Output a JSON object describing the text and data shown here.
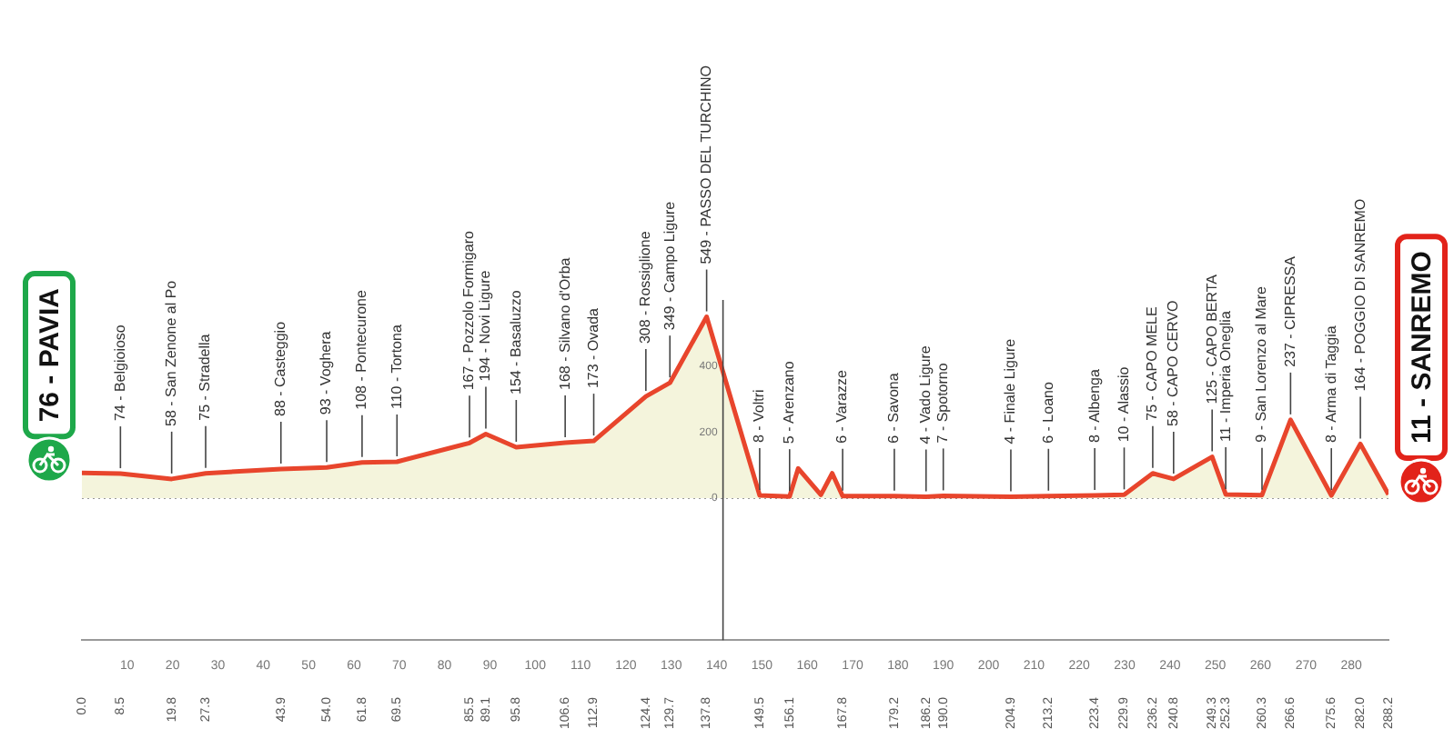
{
  "chart_data": {
    "type": "area",
    "series": [
      {
        "color": "#e8452c",
        "x": [
          0,
          8.5,
          19.8,
          27.3,
          43.9,
          54,
          61.8,
          69.5,
          85.5,
          89.1,
          95.8,
          106.6,
          112.9,
          124.4,
          129.7,
          137.8,
          149.5,
          156.1,
          158,
          163,
          165.5,
          167.8,
          179.2,
          186.2,
          190,
          204.9,
          213.2,
          223.4,
          229.9,
          236.2,
          240.8,
          249.3,
          252.3,
          260.3,
          266.6,
          275.6,
          282,
          288.2
        ],
        "values": [
          76,
          74,
          58,
          75,
          88,
          93,
          108,
          110,
          167,
          194,
          154,
          168,
          173,
          308,
          349,
          549,
          8,
          5,
          90,
          10,
          75,
          6,
          6,
          4,
          7,
          4,
          6,
          8,
          10,
          75,
          58,
          125,
          11,
          9,
          237,
          8,
          164,
          11
        ]
      }
    ],
    "xlim": [
      0,
      288.2
    ],
    "xticks": [
      10,
      20,
      30,
      40,
      50,
      60,
      70,
      80,
      90,
      100,
      110,
      120,
      130,
      140,
      150,
      160,
      170,
      180,
      190,
      200,
      210,
      220,
      230,
      240,
      250,
      260,
      270,
      280
    ],
    "x2lim": [
      0,
      288.2
    ],
    "x2ticks": [
      {
        "value": 0,
        "label": "0.0"
      },
      8.5,
      19.8,
      27.3,
      43.9,
      {
        "value": 54,
        "label": "54.0"
      },
      61.8,
      69.5,
      85.5,
      89.1,
      95.8,
      106.6,
      112.9,
      124.4,
      129.7,
      137.8,
      149.5,
      156.1,
      167.8,
      179.2,
      186.2,
      {
        "value": 190,
        "label": "190.0"
      },
      204.9,
      213.2,
      223.4,
      229.9,
      236.2,
      240.8,
      249.3,
      252.3,
      260.3,
      266.6,
      275.6,
      {
        "value": 282,
        "label": "282.0"
      },
      288.2
    ],
    "ylim": [
      -430,
      600
    ],
    "yticks": [
      0,
      200,
      400
    ],
    "ref_lines": [
      {
        "axis": "y",
        "value": 0,
        "line_style": "dotted",
        "color": "#999999"
      }
    ],
    "annotations": [
      {
        "text": "76 - PAVIA",
        "x": 0,
        "y": 76
      },
      {
        "text": "74 - Belgioioso",
        "x": 8.5,
        "y": 74
      },
      {
        "text": "58 - San Zenone al Po",
        "x": 19.8,
        "y": 58
      },
      {
        "text": "75 - Stradella",
        "x": 27.3,
        "y": 75
      },
      {
        "text": "88 - Casteggio",
        "x": 43.9,
        "y": 88
      },
      {
        "text": "93 - Voghera",
        "x": 54,
        "y": 93
      },
      {
        "text": "108 - Pontecurone",
        "x": 61.8,
        "y": 108
      },
      {
        "text": "110 - Tortona",
        "x": 69.5,
        "y": 110
      },
      {
        "text": "167 - Pozzolo Formigaro",
        "x": 85.5,
        "y": 167
      },
      {
        "text": "194 - Novi Ligure",
        "x": 89.1,
        "y": 194
      },
      {
        "text": "154 - Basaluzzo",
        "x": 95.8,
        "y": 154
      },
      {
        "text": "168 - Silvano d'Orba",
        "x": 106.6,
        "y": 168
      },
      {
        "text": "173 - Ovada",
        "x": 112.9,
        "y": 173
      },
      {
        "text": "308 - Rossiglione",
        "x": 124.4,
        "y": 308
      },
      {
        "text": "349 - Campo Ligure",
        "x": 129.7,
        "y": 349
      },
      {
        "text": "549 - PASSO DEL TURCHINO",
        "x": 137.8,
        "y": 549
      },
      {
        "text": "8 - Voltri",
        "x": 149.5,
        "y": 8
      },
      {
        "text": "5 - Arenzano",
        "x": 156.1,
        "y": 5
      },
      {
        "text": "6 - Varazze",
        "x": 167.8,
        "y": 6
      },
      {
        "text": "6 - Savona",
        "x": 179.2,
        "y": 6
      },
      {
        "text": "4 - Vado Ligure",
        "x": 186.2,
        "y": 4
      },
      {
        "text": "7 - Spotorno",
        "x": 190,
        "y": 7
      },
      {
        "text": "4 - Finale Ligure",
        "x": 204.9,
        "y": 4
      },
      {
        "text": "6 - Loano",
        "x": 213.2,
        "y": 6
      },
      {
        "text": "8 - Albenga",
        "x": 223.4,
        "y": 8
      },
      {
        "text": "10 - Alassio",
        "x": 229.9,
        "y": 10
      },
      {
        "text": "75 - CAPO MELE",
        "x": 236.2,
        "y": 75
      },
      {
        "text": "58 - CAPO CERVO",
        "x": 240.8,
        "y": 58
      },
      {
        "text": "125 - CAPO BERTA",
        "x": 249.3,
        "y": 125
      },
      {
        "text": "11 - Imperia Oneglia",
        "x": 252.3,
        "y": 11
      },
      {
        "text": "9 - San Lorenzo al Mare",
        "x": 260.3,
        "y": 9
      },
      {
        "text": "237 - CIPRESSA",
        "x": 266.6,
        "y": 237
      },
      {
        "text": "8 - Arma di Taggia",
        "x": 275.6,
        "y": 8
      },
      {
        "text": "164 - POGGIO DI SANREMO",
        "x": 282,
        "y": 164
      },
      {
        "text": "11 - SANREMO",
        "x": 288.2,
        "y": 11
      }
    ]
  }
}
